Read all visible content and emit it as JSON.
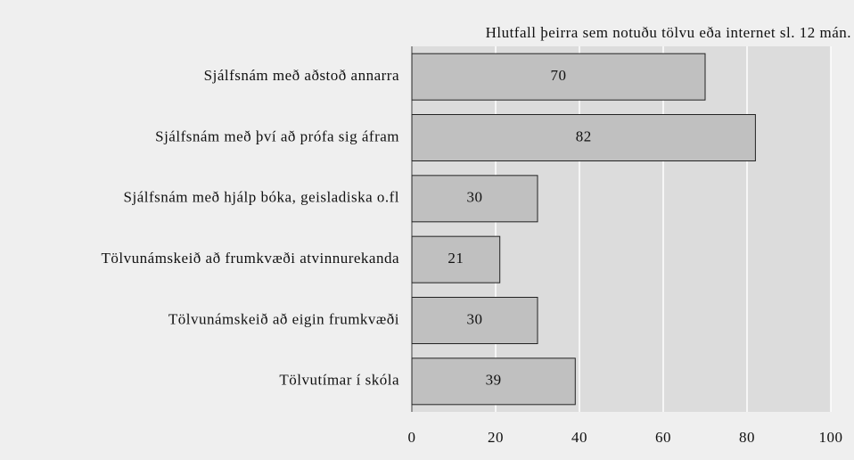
{
  "chart_data": {
    "type": "hbar",
    "title": "Hlutfall þeirra sem notuðu tölvu eða internet sl. 12 mán.",
    "categories": [
      "Sjálfsnám með aðstoð annarra",
      "Sjálfsnám með því að prófa sig áfram",
      "Sjálfsnám með hjálp bóka, geisladiska o.fl",
      "Tölvunámskeið að frumkvæði atvinnurekanda",
      "Tölvunámskeið að eigin frumkvæði",
      "Tölvutímar í skóla"
    ],
    "values": [
      70,
      82,
      30,
      21,
      30,
      39
    ],
    "color": "#c0c0c0",
    "xlim": [
      0,
      100
    ],
    "xticks": [
      0,
      20,
      40,
      60,
      80,
      100
    ],
    "grid": true
  }
}
